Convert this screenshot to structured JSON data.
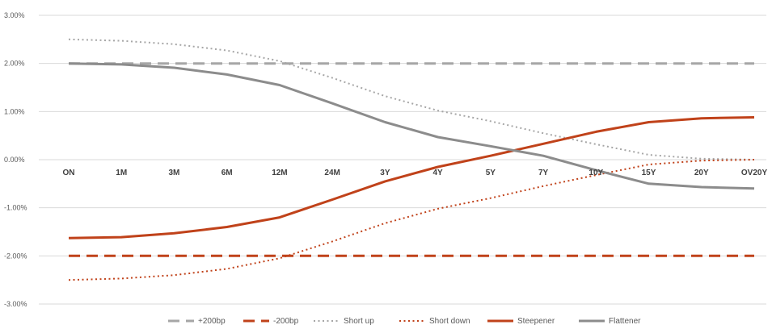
{
  "chart_data": {
    "type": "line",
    "title": "",
    "xlabel": "",
    "ylabel": "",
    "ylim": [
      -3.0,
      3.0
    ],
    "y_ticks": [
      "3.00%",
      "2.00%",
      "1.00%",
      "0.00%",
      "-1.00%",
      "-2.00%",
      "-3.00%"
    ],
    "y_tick_values": [
      3,
      2,
      1,
      0,
      -1,
      -2,
      -3
    ],
    "categories": [
      "ON",
      "1M",
      "3M",
      "6M",
      "12M",
      "24M",
      "3Y",
      "4Y",
      "5Y",
      "7Y",
      "10Y",
      "15Y",
      "20Y",
      "OV20Y"
    ],
    "grid": true,
    "legend_position": "bottom",
    "series": [
      {
        "name": "+200bp",
        "color": "#a6a6a6",
        "style": "dashed",
        "values": [
          2.0,
          2.0,
          2.0,
          2.0,
          2.0,
          2.0,
          2.0,
          2.0,
          2.0,
          2.0,
          2.0,
          2.0,
          2.0,
          2.0
        ]
      },
      {
        "name": "-200bp",
        "color": "#c0421a",
        "style": "dashed",
        "values": [
          -2.0,
          -2.0,
          -2.0,
          -2.0,
          -2.0,
          -2.0,
          -2.0,
          -2.0,
          -2.0,
          -2.0,
          -2.0,
          -2.0,
          -2.0,
          -2.0
        ]
      },
      {
        "name": "Short up",
        "color": "#a6a6a6",
        "style": "dotted",
        "values": [
          2.5,
          2.47,
          2.4,
          2.27,
          2.05,
          1.7,
          1.32,
          1.02,
          0.8,
          0.55,
          0.32,
          0.1,
          0.02,
          0.0
        ]
      },
      {
        "name": "Short down",
        "color": "#c0421a",
        "style": "dotted",
        "values": [
          -2.5,
          -2.47,
          -2.4,
          -2.27,
          -2.05,
          -1.7,
          -1.32,
          -1.02,
          -0.8,
          -0.55,
          -0.32,
          -0.1,
          -0.02,
          0.0
        ]
      },
      {
        "name": "Steepener",
        "color": "#c0421a",
        "style": "solid",
        "values": [
          -1.63,
          -1.61,
          -1.53,
          -1.4,
          -1.2,
          -0.83,
          -0.45,
          -0.15,
          0.08,
          0.33,
          0.58,
          0.78,
          0.86,
          0.88
        ]
      },
      {
        "name": "Flattener",
        "color": "#8c8c8c",
        "style": "solid",
        "values": [
          2.0,
          1.98,
          1.91,
          1.77,
          1.55,
          1.17,
          0.78,
          0.47,
          0.28,
          0.08,
          -0.22,
          -0.5,
          -0.57,
          -0.6
        ]
      }
    ]
  }
}
